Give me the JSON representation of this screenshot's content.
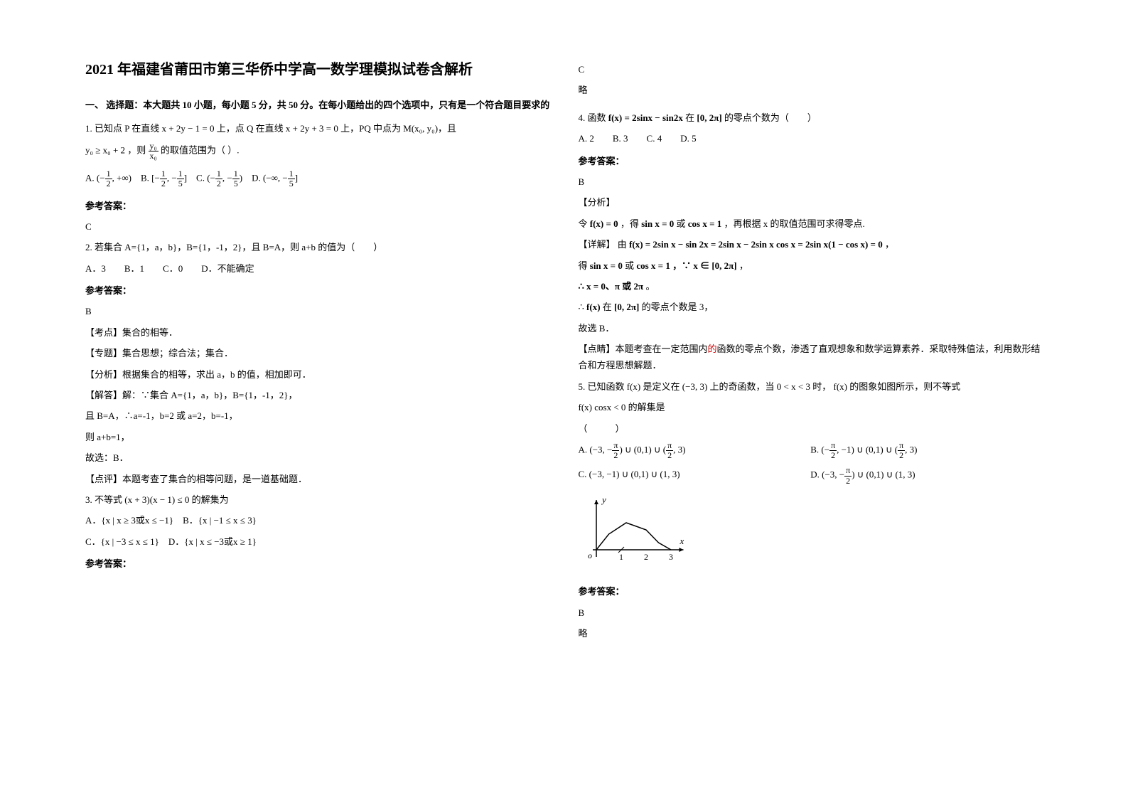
{
  "title": "2021 年福建省莆田市第三华侨中学高一数学理模拟试卷含解析",
  "section1_heading": "一、 选择题：本大题共 10 小题，每小题 5 分，共 50 分。在每小题给出的四个选项中，只有是一个符合题目要求的",
  "q1": {
    "stem_1": "1. 已知点 P 在直线",
    "line1": "x + 2y − 1 = 0",
    "stem_2": "上，点 Q 在直线",
    "line2": "x + 2y + 3 = 0",
    "stem_3": "上，PQ 中点为 M(x₀, y₀)，且",
    "cond": "y₀ ≥ x₀ + 2",
    "stem_4": "，则",
    "frac_num": "y₀",
    "frac_den": "x₀",
    "stem_5": "的取值范围为（  ）.",
    "optA_pre": "A.",
    "optA": "(−",
    "optA_half": "1",
    "optA_half_d": "2",
    "optA_suf": ", +∞)",
    "optB_pre": "B.",
    "optB_l": "[−",
    "optB_r": ", −",
    "optB_fifth": "1",
    "optB_fifth_d": "5",
    "optB_suf": "]",
    "optC_pre": "C.",
    "optC_l": "(−",
    "optC_r": ", −",
    "optC_suf": ")",
    "optD_pre": "D.",
    "optD_l": "(−∞, −",
    "optD_suf": "]",
    "answer_label": "参考答案：",
    "answer": "C"
  },
  "q2": {
    "stem": "2. 若集合 A={1，a，b}，B={1，-1，2}，且 B=A，则 a+b 的值为（　　）",
    "opts": "A．3　　B．1　　C．0　　D．不能确定",
    "answer_label": "参考答案：",
    "answer": "B",
    "line1": "【考点】集合的相等．",
    "line2": "【专题】集合思想；综合法；集合．",
    "line3": "【分析】根据集合的相等，求出 a，b 的值，相加即可．",
    "line4": "【解答】解：∵集合 A={1，a，b}，B={1，-1，2}，",
    "line5": "且 B=A，∴a=-1，b=2 或 a=2，b=-1，",
    "line6": "则 a+b=1，",
    "line7": "故选：B．",
    "line8": "【点评】本题考查了集合的相等问题，是一道基础题．"
  },
  "q3": {
    "stem_pre": "3. 不等式",
    "expr": "(x + 3)(x − 1) ≤ 0",
    "stem_suf": "的解集为",
    "optA": "A．{x | x ≥ 3或x ≤ −1}",
    "optB": "B．{x | −1 ≤ x ≤ 3}",
    "optC": "C．{x | −3 ≤ x ≤ 1}",
    "optD": "D．{x | x ≤ −3或x ≥ 1}",
    "answer_label": "参考答案：",
    "answer": "C",
    "extra": "略"
  },
  "q4": {
    "stem_pre": "4. 函数",
    "fx": "f(x) = 2sinx − sin2x",
    "stem_mid": "在",
    "interval": "[0, 2π]",
    "stem_suf": "的零点个数为（　　）",
    "opts": "A. 2　　B. 3　　C. 4　　D. 5",
    "answer_label": "参考答案：",
    "answer": "B",
    "analysis_label": "【分析】",
    "analysis_1_pre": "令",
    "analysis_1_fx0": "f(x) = 0",
    "analysis_1_mid": "，得",
    "analysis_1_sin": "sin x = 0",
    "analysis_1_or": "或",
    "analysis_1_cos": "cos x = 1",
    "analysis_1_suf": "，再根据 x 的取值范围可求得零点.",
    "detail_label": "【详解】",
    "detail_pre": "由",
    "detail_eq": "f(x) = 2sin x − sin 2x = 2sin x − 2sin x cos x = 2sin x(1 − cos x) = 0",
    "detail_suf": "，",
    "line_get_pre": "得",
    "line_get_sin": "sin x = 0",
    "line_get_or": "或",
    "line_get_cos": "cos x = 1",
    "line_get_because": "，∵ x ∈ [0, 2π]",
    "line_get_suf": "，",
    "therefore1": "∴ x = 0、π 或 2π",
    "therefore1_suf": "。",
    "therefore2_pre": "∴",
    "therefore2_fx": "f(x)",
    "therefore2_mid": "在",
    "therefore2_int": "[0, 2π]",
    "therefore2_suf": "的零点个数是 3，",
    "therefore3": "故选 B．",
    "comment_pre": "【点睛】本题考查在一定范围内",
    "comment_hot": "的",
    "comment_suf": "函数的零点个数，渗透了直观想象和数学运算素养．采取特殊值法，利用数形结合和方程思想解题．"
  },
  "q5": {
    "stem_pre": "5. 已知函数",
    "fx": "f(x)",
    "stem_2": "是定义在",
    "interval": "(−3, 3)",
    "stem_3": "上的奇函数，当",
    "cond": "0 < x < 3",
    "stem_4": "时，",
    "stem_5": "的图象如图所示，则不等式",
    "ineq": "f(x) cosx < 0",
    "stem_6": "的解集是",
    "paren": "（　　　）",
    "optA_pre": "A.",
    "optA": "(−3, −",
    "optA_pi2_n": "π",
    "optA_pi2_d": "2",
    "optA_mid": ") ∪ (0,1) ∪ (",
    "optA_end": ", 3)",
    "optB_pre": "B.",
    "optB": "(−",
    "optB_mid": ", −1) ∪ (0,1) ∪ (",
    "optB_end": ", 3)",
    "optC_pre": "C.",
    "optC": "(−3, −1) ∪ (0,1) ∪ (1, 3)",
    "optD_pre": "D.",
    "optD": "(−3, −",
    "optD_mid": ") ∪ (0,1) ∪ (1, 3)",
    "answer_label": "参考答案：",
    "answer": "B",
    "extra": "略"
  },
  "chart": {
    "type": "function-curve",
    "width": 150,
    "height": 110,
    "axis_color": "#000000",
    "curve_color": "#000000",
    "background": "#ffffff",
    "x_ticks": [
      "1",
      "2",
      "3"
    ],
    "y_label": "y",
    "x_label": "x",
    "origin_label": "o",
    "curve_points": [
      [
        0,
        0
      ],
      [
        0.5,
        22
      ],
      [
        1.2,
        38
      ],
      [
        2.0,
        28
      ],
      [
        2.5,
        10
      ],
      [
        3.0,
        0
      ]
    ],
    "stroke_width": 1.5,
    "arrow_size": 6
  }
}
